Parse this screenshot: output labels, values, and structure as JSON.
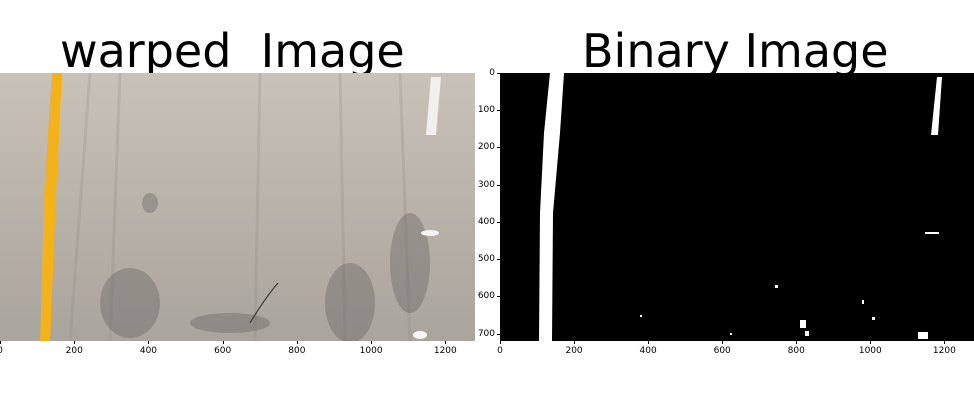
{
  "panels": [
    {
      "title": "warped  Image",
      "x_ticks": [
        "0",
        "200",
        "400",
        "600",
        "800",
        "1000",
        "1200"
      ],
      "y_ticks": []
    },
    {
      "title": "Binary Image",
      "x_ticks": [
        "0",
        "200",
        "400",
        "600",
        "800",
        "1000",
        "1200"
      ],
      "y_ticks": [
        "0",
        "100",
        "200",
        "300",
        "400",
        "500",
        "600",
        "700"
      ]
    }
  ],
  "colors": {
    "road": "#b8b1a8",
    "lane_yellow": "#f3b21a",
    "binary_bg": "#000000",
    "binary_fg": "#ffffff"
  }
}
